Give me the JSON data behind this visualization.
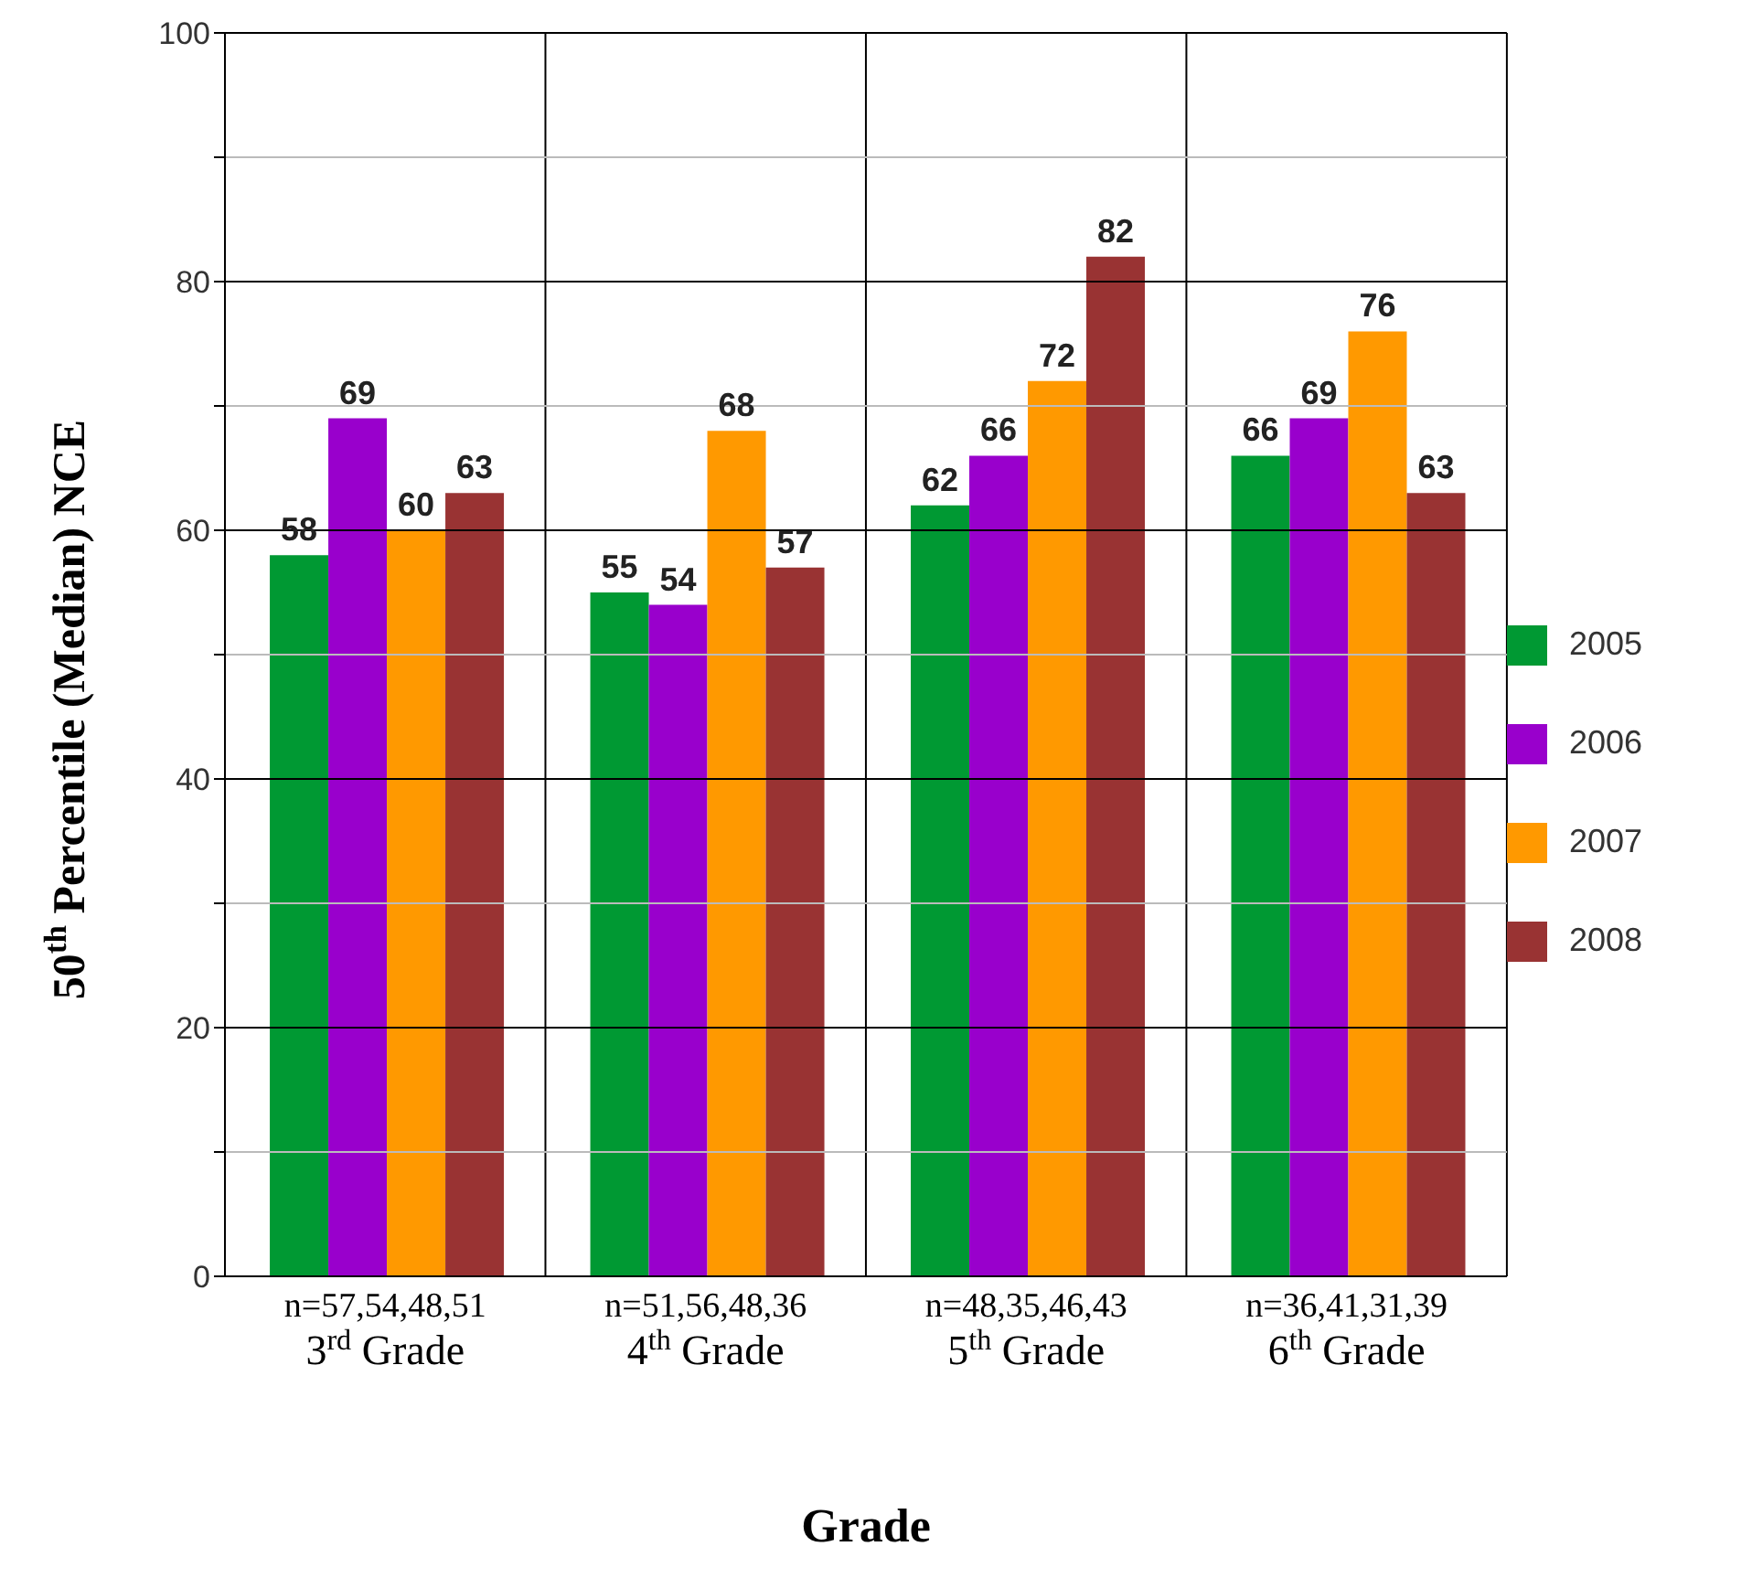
{
  "chart_data": {
    "type": "bar",
    "xlabel": "Grade",
    "ylabel": "50$^{th}$ Percentile (Median) NCE",
    "categories": [
      "n=57,54,48,51\n3$^{rd}$ Grade",
      "n=51,56,48,36\n4$^{th}$ Grade",
      "n=48,35,46,43\n5$^{th}$ Grade",
      "n=36,41,31,39\n6$^{th}$ Grade"
    ],
    "series": [
      {
        "name": "2005",
        "color": "#009933",
        "values": [
          58,
          55,
          62,
          66
        ]
      },
      {
        "name": "2006",
        "color": "#9900cc",
        "values": [
          69,
          54,
          66,
          69
        ]
      },
      {
        "name": "2007",
        "color": "#ff9900",
        "values": [
          60,
          68,
          72,
          76
        ]
      },
      {
        "name": "2008",
        "color": "#993333",
        "values": [
          63,
          57,
          82,
          63
        ]
      }
    ],
    "ylim": [
      0,
      100
    ],
    "yticks": [
      0,
      {
        "value": 10,
        "label": null
      },
      20,
      {
        "value": 30,
        "label": null
      },
      40,
      {
        "value": 50,
        "label": null
      },
      60,
      {
        "value": 70,
        "label": null
      },
      80,
      {
        "value": 90,
        "label": null
      },
      100
    ],
    "grid": true,
    "legend": "right",
    "data_labels": true
  }
}
